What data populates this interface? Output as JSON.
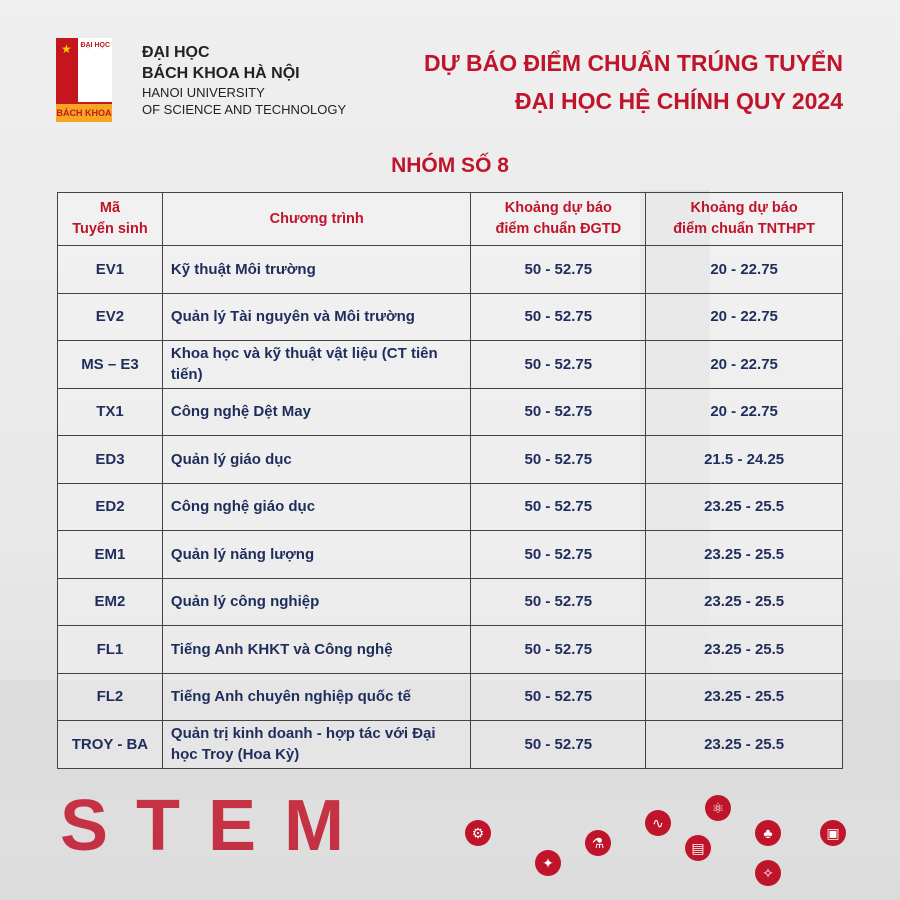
{
  "logo": {
    "top_text": "ĐẠI HỌC",
    "bottom_text": "BÁCH KHOA"
  },
  "university": {
    "line1": "ĐẠI HỌC",
    "line2": "BÁCH KHOA HÀ NỘI",
    "line3": "HANOI UNIVERSITY",
    "line4": "OF SCIENCE AND TECHNOLOGY"
  },
  "title": {
    "line1": "DỰ BÁO ĐIỂM CHUẨN TRÚNG TUYỂN",
    "line2": "ĐẠI HỌC HỆ CHÍNH QUY 2024"
  },
  "group_title": "NHÓM SỐ 8",
  "table": {
    "headers": {
      "code_line1": "Mã",
      "code_line2": "Tuyển sinh",
      "program": "Chương trình",
      "dgtd_line1": "Khoảng dự báo",
      "dgtd_line2": "điểm chuẩn ĐGTD",
      "tnthpt_line1": "Khoảng dự báo",
      "tnthpt_line2": "điểm chuẩn TNTHPT"
    },
    "rows": [
      {
        "code": "EV1",
        "program": "Kỹ thuật Môi trường",
        "dgtd": "50 - 52.75",
        "tnthpt": "20 - 22.75"
      },
      {
        "code": "EV2",
        "program": "Quản lý Tài nguyên và Môi trường",
        "dgtd": "50 - 52.75",
        "tnthpt": "20 - 22.75"
      },
      {
        "code": "MS – E3",
        "program": "Khoa học và kỹ thuật vật liệu (CT tiên tiến)",
        "dgtd": "50 - 52.75",
        "tnthpt": "20 - 22.75"
      },
      {
        "code": "TX1",
        "program": "Công nghệ Dệt May",
        "dgtd": "50 - 52.75",
        "tnthpt": "20 - 22.75"
      },
      {
        "code": "ED3",
        "program": "Quản lý giáo dục",
        "dgtd": "50 - 52.75",
        "tnthpt": "21.5 - 24.25"
      },
      {
        "code": "ED2",
        "program": "Công nghệ giáo dục",
        "dgtd": "50 - 52.75",
        "tnthpt": "23.25 - 25.5"
      },
      {
        "code": "EM1",
        "program": "Quản lý năng lượng",
        "dgtd": "50 - 52.75",
        "tnthpt": "23.25 - 25.5"
      },
      {
        "code": "EM2",
        "program": "Quản lý công nghiệp",
        "dgtd": "50 - 52.75",
        "tnthpt": "23.25 - 25.5"
      },
      {
        "code": "FL1",
        "program": "Tiếng Anh KHKT và Công nghệ",
        "dgtd": "50 - 52.75",
        "tnthpt": "23.25 - 25.5"
      },
      {
        "code": "FL2",
        "program": "Tiếng Anh chuyên nghiệp quốc tế",
        "dgtd": "50 - 52.75",
        "tnthpt": "23.25 - 25.5"
      },
      {
        "code": "TROY - BA",
        "program": "Quản trị kinh doanh - hợp tác với Đại học Troy (Hoa Kỳ)",
        "dgtd": "50 - 52.75",
        "tnthpt": "23.25 - 25.5"
      }
    ]
  },
  "decor": {
    "stem_letters": "STEM"
  },
  "colors": {
    "accent": "#c0142a",
    "text": "#1f2d5c"
  }
}
